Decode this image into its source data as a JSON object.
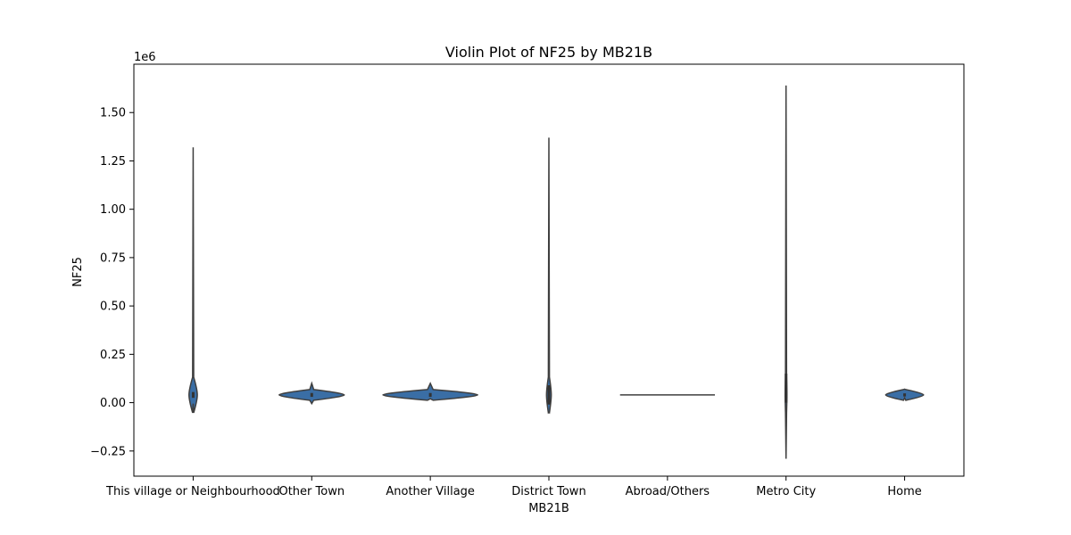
{
  "chart_data": {
    "type": "violin",
    "title": "Violin Plot of NF25 by MB21B",
    "xlabel": "MB21B",
    "ylabel": "NF25",
    "y_offset_label": "1e6",
    "y_scale_factor": 1000000,
    "ylim": [
      -0.38,
      1.75
    ],
    "yticks": [
      -0.25,
      0.0,
      0.25,
      0.5,
      0.75,
      1.0,
      1.25,
      1.5
    ],
    "ytick_labels": [
      "−0.25",
      "0.00",
      "0.25",
      "0.50",
      "0.75",
      "1.00",
      "1.25",
      "1.50"
    ],
    "categories": [
      "This village or Neighbourhood",
      "Other Town",
      "Another Village",
      "District Town",
      "Abroad/Others",
      "Metro City",
      "Home"
    ],
    "violins": [
      {
        "category": "This village or Neighbourhood",
        "min": -0.005,
        "max": 1.32,
        "center": 0.04,
        "width_rel": 0.07,
        "core": [
          0.025,
          0.055
        ]
      },
      {
        "category": "Other Town",
        "min": -0.005,
        "max": 0.1,
        "center": 0.04,
        "width_rel": 0.55,
        "core": [
          0.03,
          0.05
        ]
      },
      {
        "category": "Another Village",
        "min": 0.02,
        "max": 0.1,
        "center": 0.04,
        "width_rel": 0.8,
        "core": [
          0.03,
          0.05
        ]
      },
      {
        "category": "District Town",
        "min": -0.05,
        "max": 1.37,
        "center": 0.04,
        "width_rel": 0.04,
        "core": [
          -0.01,
          0.09
        ]
      },
      {
        "category": "Abroad/Others",
        "min": 0.04,
        "max": 0.04,
        "center": 0.04,
        "width_rel": 0.8,
        "core": [
          0.04,
          0.04
        ]
      },
      {
        "category": "Metro City",
        "min": -0.29,
        "max": 1.64,
        "center": 0.04,
        "width_rel": 0.015,
        "core": [
          0.0,
          0.15
        ]
      },
      {
        "category": "Home",
        "min": 0.025,
        "max": 0.07,
        "center": 0.04,
        "width_rel": 0.32,
        "core": [
          0.032,
          0.048
        ]
      }
    ],
    "fill_color": "#3a6ea5",
    "line_color": "#3f3f3f",
    "grid": false,
    "legend": "none"
  }
}
